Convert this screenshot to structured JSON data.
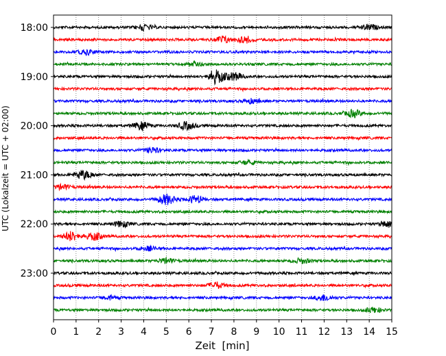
{
  "chart_data": {
    "type": "line",
    "chart_kind": "helicorder",
    "xlabel": "Zeit  [min]",
    "ylabel": "UTC (Lokalzeit = UTC + 02:00)",
    "xlim": [
      0,
      15
    ],
    "x_ticks": [
      "0",
      "1",
      "2",
      "3",
      "4",
      "5",
      "6",
      "7",
      "8",
      "9",
      "10",
      "11",
      "12",
      "13",
      "14",
      "15"
    ],
    "y_tick_labels": [
      "18:00",
      "19:00",
      "20:00",
      "21:00",
      "22:00",
      "23:00"
    ],
    "grid": "vertical dotted lines at each minute",
    "colors": [
      "#000000",
      "#ff0000",
      "#0000ff",
      "#008000"
    ],
    "traces": [
      {
        "start": "18:00",
        "color": "#000000",
        "events": [
          {
            "t": 4.0,
            "amp": 1.2
          },
          {
            "t": 14.0,
            "amp": 1.1
          }
        ]
      },
      {
        "start": "18:15",
        "color": "#ff0000",
        "events": [
          {
            "t": 7.5,
            "amp": 1.5
          },
          {
            "t": 8.5,
            "amp": 1.4
          }
        ]
      },
      {
        "start": "18:30",
        "color": "#0000ff",
        "events": [
          {
            "t": 1.5,
            "amp": 1.0
          }
        ]
      },
      {
        "start": "18:45",
        "color": "#008000",
        "events": [
          {
            "t": 6.3,
            "amp": 0.8
          }
        ]
      },
      {
        "start": "19:00",
        "color": "#000000",
        "events": [
          {
            "t": 7.2,
            "amp": 3.0
          },
          {
            "t": 8.0,
            "amp": 1.6
          }
        ]
      },
      {
        "start": "19:15",
        "color": "#ff0000",
        "events": []
      },
      {
        "start": "19:30",
        "color": "#0000ff",
        "events": [
          {
            "t": 8.8,
            "amp": 0.9
          }
        ]
      },
      {
        "start": "19:45",
        "color": "#008000",
        "events": [
          {
            "t": 13.3,
            "amp": 1.5
          }
        ]
      },
      {
        "start": "20:00",
        "color": "#000000",
        "events": [
          {
            "t": 3.9,
            "amp": 1.5
          },
          {
            "t": 5.9,
            "amp": 1.6
          }
        ]
      },
      {
        "start": "20:15",
        "color": "#ff0000",
        "events": []
      },
      {
        "start": "20:30",
        "color": "#0000ff",
        "events": [
          {
            "t": 4.4,
            "amp": 1.1
          }
        ]
      },
      {
        "start": "20:45",
        "color": "#008000",
        "events": [
          {
            "t": 8.6,
            "amp": 0.8
          }
        ]
      },
      {
        "start": "21:00",
        "color": "#000000",
        "events": [
          {
            "t": 1.3,
            "amp": 1.8
          }
        ]
      },
      {
        "start": "21:15",
        "color": "#ff0000",
        "events": [
          {
            "t": 0.4,
            "amp": 1.0
          }
        ]
      },
      {
        "start": "21:30",
        "color": "#0000ff",
        "events": [
          {
            "t": 5.0,
            "amp": 2.2
          },
          {
            "t": 6.3,
            "amp": 1.5
          }
        ]
      },
      {
        "start": "21:45",
        "color": "#008000",
        "events": []
      },
      {
        "start": "22:00",
        "color": "#000000",
        "events": [
          {
            "t": 3.0,
            "amp": 1.1
          },
          {
            "t": 14.9,
            "amp": 1.6
          }
        ]
      },
      {
        "start": "22:15",
        "color": "#ff0000",
        "events": [
          {
            "t": 0.8,
            "amp": 2.0
          },
          {
            "t": 1.8,
            "amp": 1.5
          }
        ]
      },
      {
        "start": "22:30",
        "color": "#0000ff",
        "events": [
          {
            "t": 4.2,
            "amp": 0.8
          }
        ]
      },
      {
        "start": "22:45",
        "color": "#008000",
        "events": [
          {
            "t": 5.0,
            "amp": 1.0
          },
          {
            "t": 11.0,
            "amp": 1.0
          }
        ]
      },
      {
        "start": "23:00",
        "color": "#000000",
        "events": []
      },
      {
        "start": "23:15",
        "color": "#ff0000",
        "events": [
          {
            "t": 7.2,
            "amp": 1.3
          }
        ]
      },
      {
        "start": "23:30",
        "color": "#0000ff",
        "events": [
          {
            "t": 12.0,
            "amp": 1.3
          },
          {
            "t": 2.5,
            "amp": 0.8
          }
        ]
      },
      {
        "start": "23:45",
        "color": "#008000",
        "events": [
          {
            "t": 14.2,
            "amp": 1.0
          }
        ]
      }
    ]
  }
}
